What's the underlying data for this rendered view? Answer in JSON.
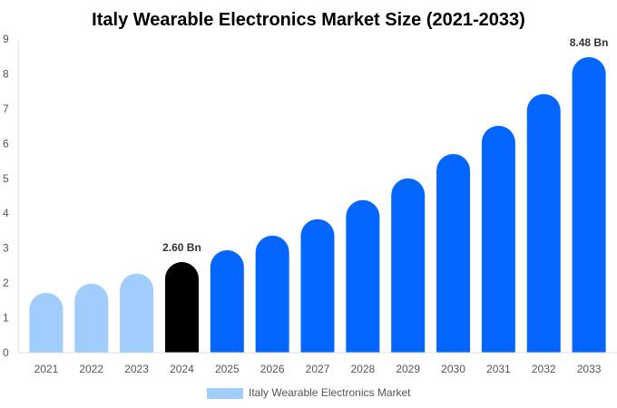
{
  "chart_data": {
    "type": "bar",
    "title": "Italy Wearable Electronics Market Size (2021-2033)",
    "categories": [
      "2021",
      "2022",
      "2023",
      "2024",
      "2025",
      "2026",
      "2027",
      "2028",
      "2029",
      "2030",
      "2031",
      "2032",
      "2033"
    ],
    "series": [
      {
        "name": "Italy Wearable Electronics Market",
        "values": [
          1.72,
          1.98,
          2.27,
          2.6,
          2.94,
          3.36,
          3.83,
          4.38,
          5.0,
          5.7,
          6.51,
          7.42,
          8.48
        ]
      }
    ],
    "data_labels": {
      "3": "2.60 Bn",
      "12": "8.48 Bn"
    },
    "ylim": [
      0,
      9
    ],
    "yticks": [
      0,
      1,
      2,
      3,
      4,
      5,
      6,
      7,
      8,
      9
    ],
    "xlabel": "",
    "ylabel": "",
    "grid": false,
    "legend_position": "bottom",
    "colors": {
      "historic": "#a0cdfc",
      "current": "#000000",
      "forecast": "#0466ff"
    }
  }
}
